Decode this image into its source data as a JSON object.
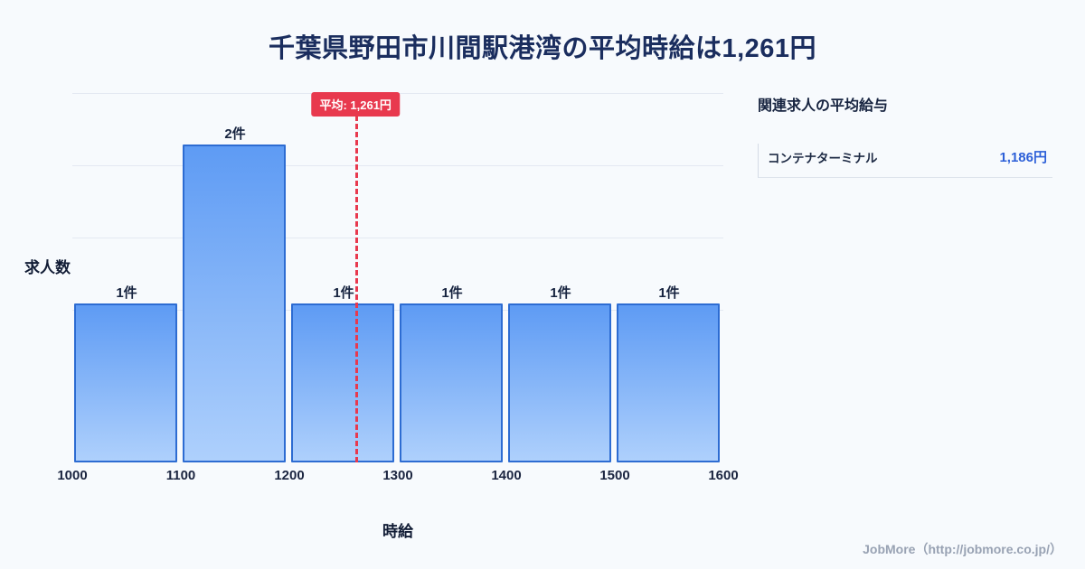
{
  "title": "千葉県野田市川間駅港湾の平均時給は1,261円",
  "chart_data": {
    "type": "bar",
    "title": "千葉県野田市川間駅港湾の平均時給は1,261円",
    "xlabel": "時給",
    "ylabel": "求人数",
    "categories": [
      "1000-1100",
      "1100-1200",
      "1200-1300",
      "1300-1400",
      "1400-1500",
      "1500-1600"
    ],
    "values": [
      1,
      2,
      1,
      1,
      1,
      1
    ],
    "bar_labels": [
      "1件",
      "2件",
      "1件",
      "1件",
      "1件",
      "1件"
    ],
    "x_ticks": [
      "1000",
      "1100",
      "1200",
      "1300",
      "1400",
      "1500",
      "1600"
    ],
    "x_range": [
      1000,
      1600
    ],
    "ylim": [
      0,
      2.34
    ],
    "grid": true,
    "legend": "none",
    "average": {
      "value": 1261,
      "label": "平均: 1,261円"
    },
    "colors": {
      "bar_top": "#5e9bf4",
      "bar_bottom": "#aed0fc",
      "bar_border": "#2d6cd2",
      "average_line": "#e8394e",
      "title_text": "#1a2d5e",
      "value_blue": "#2d60d8"
    }
  },
  "sidebar": {
    "title": "関連求人の平均給与",
    "items": [
      {
        "label": "コンテナターミナル",
        "value": "1,186円"
      }
    ]
  },
  "footer": {
    "credit": "JobMore（http://jobmore.co.jp/）"
  }
}
